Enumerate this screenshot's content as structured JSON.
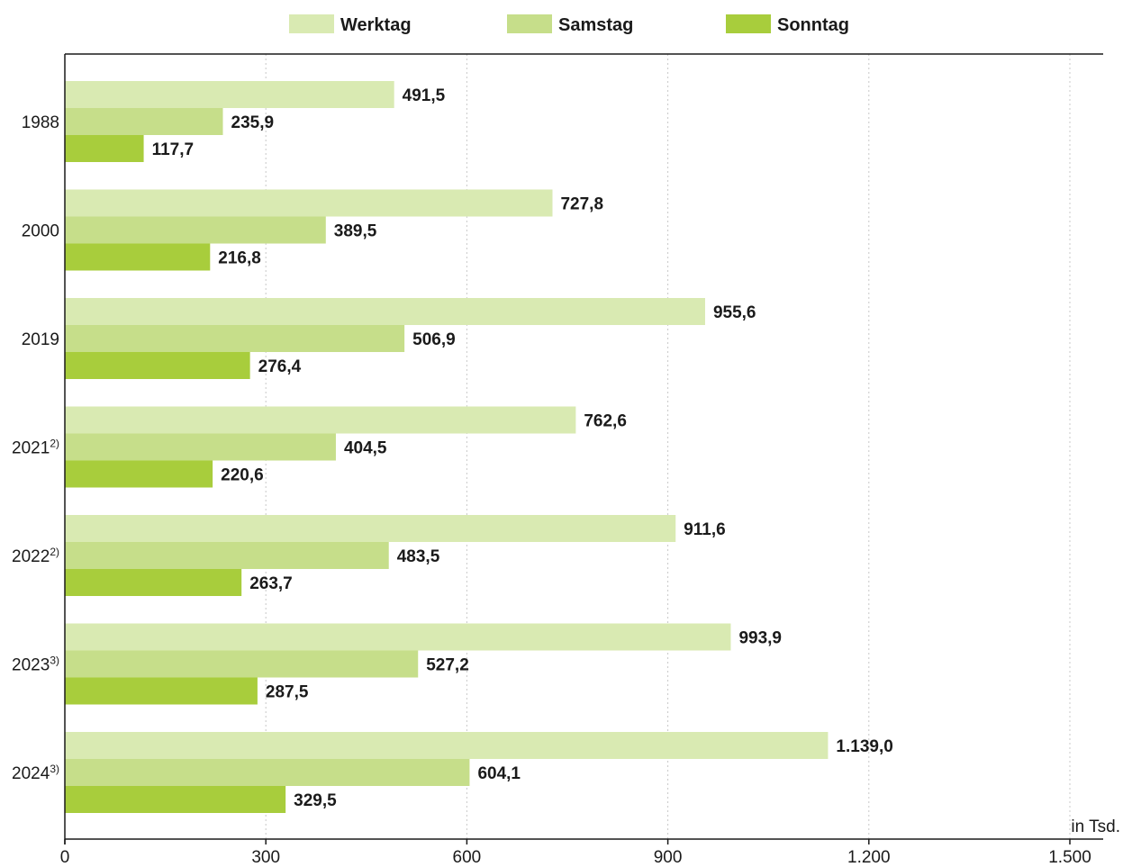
{
  "chart_data": {
    "type": "bar",
    "orientation": "horizontal",
    "categories": [
      {
        "label": "1988",
        "sup": ""
      },
      {
        "label": "2000",
        "sup": ""
      },
      {
        "label": "2019",
        "sup": ""
      },
      {
        "label": "2021",
        "sup": "2)"
      },
      {
        "label": "2022",
        "sup": "2)"
      },
      {
        "label": "2023",
        "sup": "3)"
      },
      {
        "label": "2024",
        "sup": "3)"
      }
    ],
    "series": [
      {
        "name": "Werktag",
        "color": "#d9eab2",
        "values": [
          491.5,
          727.8,
          955.6,
          762.6,
          911.6,
          993.9,
          1139.0
        ],
        "labels": [
          "491,5",
          "727,8",
          "955,6",
          "762,6",
          "911,6",
          "993,9",
          "1.139,0"
        ]
      },
      {
        "name": "Samstag",
        "color": "#c6de8a",
        "values": [
          235.9,
          389.5,
          506.9,
          404.5,
          483.5,
          527.2,
          604.1
        ],
        "labels": [
          "235,9",
          "389,5",
          "506,9",
          "404,5",
          "483,5",
          "527,2",
          "604,1"
        ]
      },
      {
        "name": "Sonntag",
        "color": "#a8cd3c",
        "values": [
          117.7,
          216.8,
          276.4,
          220.6,
          263.7,
          287.5,
          329.5
        ],
        "labels": [
          "117,7",
          "216,8",
          "276,4",
          "220,6",
          "263,7",
          "287,5",
          "329,5"
        ]
      }
    ],
    "xlim": [
      0,
      1500
    ],
    "xticks": [
      0,
      300,
      600,
      900,
      1200,
      1500
    ],
    "xtick_labels": [
      "0",
      "300",
      "600",
      "900",
      "1.200",
      "1.500"
    ],
    "xlabel": "in Tsd.",
    "legend_position": "top-center",
    "grid": "vertical-dotted",
    "title": ""
  }
}
